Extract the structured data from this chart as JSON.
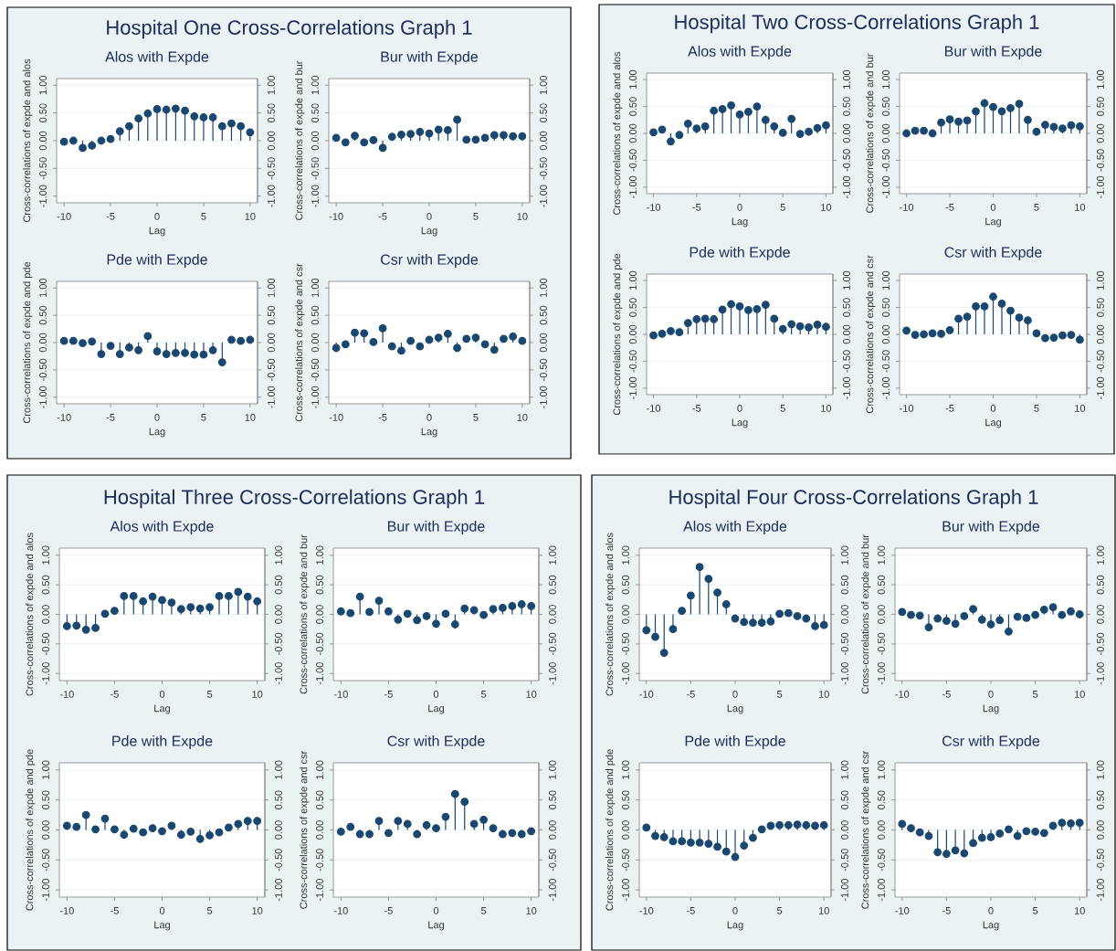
{
  "chart_data": [
    {
      "type": "lollipop",
      "title": "Alos with Expde",
      "xlabel": "Lag",
      "ylabel": "Cross-correlations of expde and alos",
      "annotations": [
        "Hospital One Cross-Correlations Graph 1"
      ],
      "color": "#1a476f",
      "marker": "circle",
      "grid": "y",
      "x": [
        -10,
        -9,
        -8,
        -7,
        -6,
        -5,
        -4,
        -3,
        -2,
        -1,
        0,
        1,
        2,
        3,
        4,
        5,
        6,
        7,
        8,
        9,
        10
      ],
      "values": [
        -0.02,
        0.0,
        -0.13,
        -0.09,
        0.0,
        0.03,
        0.17,
        0.26,
        0.4,
        0.49,
        0.57,
        0.56,
        0.58,
        0.54,
        0.44,
        0.42,
        0.42,
        0.26,
        0.31,
        0.26,
        0.15
      ],
      "xlim": [
        -10.8,
        10.8
      ],
      "xticks": [
        -10,
        -5,
        0,
        5,
        10
      ],
      "ylim": [
        -1.12,
        1.12
      ],
      "yticks": [
        {
          "value": -1,
          "label": "-1.00"
        },
        {
          "value": -0.5,
          "label": "-0.50"
        },
        {
          "value": 0,
          "label": "0.00"
        },
        {
          "value": 0.5,
          "label": "0.50"
        },
        {
          "value": 1,
          "label": "1.00"
        }
      ],
      "y2lim": [
        -1.12,
        1.12
      ],
      "y2ticks": [
        {
          "value": -1,
          "label": "-1.00"
        },
        {
          "value": -0.5,
          "label": "-0.50"
        },
        {
          "value": 0,
          "label": "0.00"
        },
        {
          "value": 0.5,
          "label": "0.50"
        },
        {
          "value": 1,
          "label": "1.00"
        }
      ]
    },
    {
      "type": "lollipop",
      "title": "Bur with Expde",
      "xlabel": "Lag",
      "ylabel": "Cross-correlations of expde and bur",
      "color": "#1a476f",
      "marker": "circle",
      "grid": "y",
      "x": [
        -10,
        -9,
        -8,
        -7,
        -6,
        -5,
        -4,
        -3,
        -2,
        -1,
        0,
        1,
        2,
        3,
        4,
        5,
        6,
        7,
        8,
        9,
        10
      ],
      "values": [
        0.05,
        -0.03,
        0.09,
        -0.03,
        0.01,
        -0.13,
        0.07,
        0.11,
        0.12,
        0.16,
        0.13,
        0.2,
        0.19,
        0.38,
        0.02,
        0.02,
        0.05,
        0.1,
        0.1,
        0.08,
        0.08
      ],
      "xlim": [
        -10.8,
        10.8
      ],
      "xticks": [
        -10,
        -5,
        0,
        5,
        10
      ],
      "ylim": [
        -1.12,
        1.12
      ],
      "yticks": [
        {
          "value": -1,
          "label": "-1.00"
        },
        {
          "value": -0.5,
          "label": "-0.50"
        },
        {
          "value": 0,
          "label": "0.00"
        },
        {
          "value": 0.5,
          "label": "0.50"
        },
        {
          "value": 1,
          "label": "1.00"
        }
      ],
      "y2lim": [
        -1.12,
        1.12
      ],
      "y2ticks": [
        {
          "value": -1,
          "label": "-1.00"
        },
        {
          "value": -0.5,
          "label": "-0.50"
        },
        {
          "value": 0,
          "label": "0.00"
        },
        {
          "value": 0.5,
          "label": "0.50"
        },
        {
          "value": 1,
          "label": "1.00"
        }
      ]
    },
    {
      "type": "lollipop",
      "title": "Pde with Expde",
      "xlabel": "Lag",
      "ylabel": "Cross-correlations of expde and pde",
      "color": "#1a476f",
      "marker": "circle",
      "grid": "y",
      "x": [
        -10,
        -9,
        -8,
        -7,
        -6,
        -5,
        -4,
        -3,
        -2,
        -1,
        0,
        1,
        2,
        3,
        4,
        5,
        6,
        7,
        8,
        9,
        10
      ],
      "values": [
        0.03,
        0.03,
        -0.01,
        0.02,
        -0.21,
        -0.06,
        -0.21,
        -0.09,
        -0.14,
        0.12,
        -0.16,
        -0.21,
        -0.19,
        -0.19,
        -0.22,
        -0.22,
        -0.14,
        -0.36,
        0.05,
        0.03,
        0.05
      ],
      "xlim": [
        -10.8,
        10.8
      ],
      "xticks": [
        -10,
        -5,
        0,
        5,
        10
      ],
      "ylim": [
        -1.12,
        1.12
      ],
      "yticks": [
        {
          "value": -1,
          "label": "-1.00"
        },
        {
          "value": -0.5,
          "label": "-0.50"
        },
        {
          "value": 0,
          "label": "0.00"
        },
        {
          "value": 0.5,
          "label": "0.50"
        },
        {
          "value": 1,
          "label": "1.00"
        }
      ],
      "y2lim": [
        -1.12,
        1.12
      ],
      "y2ticks": [
        {
          "value": -1,
          "label": "-1.00"
        },
        {
          "value": -0.5,
          "label": "-0.50"
        },
        {
          "value": 0,
          "label": "0.00"
        },
        {
          "value": 0.5,
          "label": "0.50"
        },
        {
          "value": 1,
          "label": "1.00"
        }
      ]
    },
    {
      "type": "lollipop",
      "title": "Csr with Expde",
      "xlabel": "Lag",
      "ylabel": "Cross-correlations of expde and csr",
      "color": "#1a476f",
      "marker": "circle",
      "grid": "y",
      "x": [
        -10,
        -9,
        -8,
        -7,
        -6,
        -5,
        -4,
        -3,
        -2,
        -1,
        0,
        1,
        2,
        3,
        4,
        5,
        6,
        7,
        8,
        9,
        10
      ],
      "values": [
        -0.1,
        -0.03,
        0.18,
        0.17,
        0.01,
        0.26,
        -0.07,
        -0.15,
        0.03,
        -0.07,
        0.05,
        0.09,
        0.16,
        -0.1,
        0.07,
        0.09,
        -0.03,
        -0.13,
        0.07,
        0.11,
        0.03
      ],
      "xlim": [
        -10.8,
        10.8
      ],
      "xticks": [
        -10,
        -5,
        0,
        5,
        10
      ],
      "ylim": [
        -1.12,
        1.12
      ],
      "yticks": [
        {
          "value": -1,
          "label": "-1.00"
        },
        {
          "value": -0.5,
          "label": "-0.50"
        },
        {
          "value": 0,
          "label": "0.00"
        },
        {
          "value": 0.5,
          "label": "0.50"
        },
        {
          "value": 1,
          "label": "1.00"
        }
      ],
      "y2lim": [
        -1.12,
        1.12
      ],
      "y2ticks": [
        {
          "value": -1,
          "label": "-1.00"
        },
        {
          "value": -0.5,
          "label": "-0.50"
        },
        {
          "value": 0,
          "label": "0.00"
        },
        {
          "value": 0.5,
          "label": "0.50"
        },
        {
          "value": 1,
          "label": "1.00"
        }
      ]
    },
    {
      "type": "lollipop",
      "title": "Alos with Expde",
      "xlabel": "Lag",
      "ylabel": "Cross-correlations of expde and alos",
      "annotations": [
        "Hospital Two Cross-Correlations Graph 1"
      ],
      "color": "#1a476f",
      "marker": "circle",
      "grid": "y",
      "x": [
        -10,
        -9,
        -8,
        -7,
        -6,
        -5,
        -4,
        -3,
        -2,
        -1,
        0,
        1,
        2,
        3,
        4,
        5,
        6,
        7,
        8,
        9,
        10
      ],
      "values": [
        0.02,
        0.07,
        -0.15,
        -0.03,
        0.18,
        0.09,
        0.13,
        0.42,
        0.45,
        0.52,
        0.35,
        0.4,
        0.5,
        0.25,
        0.13,
        0.01,
        0.27,
        -0.01,
        0.03,
        0.1,
        0.15
      ],
      "xlim": [
        -10.8,
        10.8
      ],
      "xticks": [
        -10,
        -5,
        0,
        5,
        10
      ],
      "ylim": [
        -1.12,
        1.12
      ],
      "yticks": [
        {
          "value": -1,
          "label": "-1.00"
        },
        {
          "value": -0.5,
          "label": "-0.50"
        },
        {
          "value": 0,
          "label": "0.00"
        },
        {
          "value": 0.5,
          "label": "0.50"
        },
        {
          "value": 1,
          "label": "1.00"
        }
      ],
      "y2lim": [
        -1.12,
        1.12
      ],
      "y2ticks": [
        {
          "value": -1,
          "label": "-1.00"
        },
        {
          "value": -0.5,
          "label": "-0.50"
        },
        {
          "value": 0,
          "label": "0.00"
        },
        {
          "value": 0.5,
          "label": "0.50"
        },
        {
          "value": 1,
          "label": "1.00"
        }
      ]
    },
    {
      "type": "lollipop",
      "title": "Bur with Expde",
      "xlabel": "Lag",
      "ylabel": "Cross-correlations of expde and bur",
      "color": "#1a476f",
      "marker": "circle",
      "grid": "y",
      "x": [
        -10,
        -9,
        -8,
        -7,
        -6,
        -5,
        -4,
        -3,
        -2,
        -1,
        0,
        1,
        2,
        3,
        4,
        5,
        6,
        7,
        8,
        9,
        10
      ],
      "values": [
        0.0,
        0.05,
        0.05,
        0.0,
        0.2,
        0.26,
        0.22,
        0.24,
        0.41,
        0.56,
        0.49,
        0.41,
        0.47,
        0.55,
        0.25,
        0.03,
        0.16,
        0.12,
        0.09,
        0.15,
        0.13
      ],
      "xlim": [
        -10.8,
        10.8
      ],
      "xticks": [
        -10,
        -5,
        0,
        5,
        10
      ],
      "ylim": [
        -1.12,
        1.12
      ],
      "yticks": [
        {
          "value": -1,
          "label": "-1.00"
        },
        {
          "value": -0.5,
          "label": "-0.50"
        },
        {
          "value": 0,
          "label": "0.00"
        },
        {
          "value": 0.5,
          "label": "0.50"
        },
        {
          "value": 1,
          "label": "1.00"
        }
      ],
      "y2lim": [
        -1.12,
        1.12
      ],
      "y2ticks": [
        {
          "value": -1,
          "label": "-1.00"
        },
        {
          "value": -0.5,
          "label": "-0.50"
        },
        {
          "value": 0,
          "label": "0.00"
        },
        {
          "value": 0.5,
          "label": "0.50"
        },
        {
          "value": 1,
          "label": "1.00"
        }
      ]
    },
    {
      "type": "lollipop",
      "title": "Pde with Expde",
      "xlabel": "Lag",
      "ylabel": "Cross-correlations of expde and pde",
      "color": "#1a476f",
      "marker": "circle",
      "grid": "y",
      "x": [
        -10,
        -9,
        -8,
        -7,
        -6,
        -5,
        -4,
        -3,
        -2,
        -1,
        0,
        1,
        2,
        3,
        4,
        5,
        6,
        7,
        8,
        9,
        10
      ],
      "values": [
        -0.02,
        0.01,
        0.06,
        0.04,
        0.21,
        0.28,
        0.29,
        0.28,
        0.46,
        0.56,
        0.52,
        0.45,
        0.47,
        0.55,
        0.29,
        0.1,
        0.19,
        0.15,
        0.13,
        0.18,
        0.14
      ],
      "xlim": [
        -10.8,
        10.8
      ],
      "xticks": [
        -10,
        -5,
        0,
        5,
        10
      ],
      "ylim": [
        -1.12,
        1.12
      ],
      "yticks": [
        {
          "value": -1,
          "label": "-1.00"
        },
        {
          "value": -0.5,
          "label": "-0.50"
        },
        {
          "value": 0,
          "label": "0.00"
        },
        {
          "value": 0.5,
          "label": "0.50"
        },
        {
          "value": 1,
          "label": "1.00"
        }
      ],
      "y2lim": [
        -1.12,
        1.12
      ],
      "y2ticks": [
        {
          "value": -1,
          "label": "-1.00"
        },
        {
          "value": -0.5,
          "label": "-0.50"
        },
        {
          "value": 0,
          "label": "0.00"
        },
        {
          "value": 0.5,
          "label": "0.50"
        },
        {
          "value": 1,
          "label": "1.00"
        }
      ]
    },
    {
      "type": "lollipop",
      "title": "Csr with Expde",
      "xlabel": "Lag",
      "ylabel": "Cross-correlations of expde and csr",
      "color": "#1a476f",
      "marker": "circle",
      "grid": "y",
      "x": [
        -10,
        -9,
        -8,
        -7,
        -6,
        -5,
        -4,
        -3,
        -2,
        -1,
        0,
        1,
        2,
        3,
        4,
        5,
        6,
        7,
        8,
        9,
        10
      ],
      "values": [
        0.07,
        -0.01,
        0.0,
        0.02,
        0.01,
        0.08,
        0.29,
        0.33,
        0.52,
        0.52,
        0.7,
        0.57,
        0.44,
        0.31,
        0.26,
        0.02,
        -0.07,
        -0.06,
        -0.02,
        -0.01,
        -0.1
      ],
      "xlim": [
        -10.8,
        10.8
      ],
      "xticks": [
        -10,
        -5,
        0,
        5,
        10
      ],
      "ylim": [
        -1.12,
        1.12
      ],
      "yticks": [
        {
          "value": -1,
          "label": "-1.00"
        },
        {
          "value": -0.5,
          "label": "-0.50"
        },
        {
          "value": 0,
          "label": "0.00"
        },
        {
          "value": 0.5,
          "label": "0.50"
        },
        {
          "value": 1,
          "label": "1.00"
        }
      ],
      "y2lim": [
        -1.12,
        1.12
      ],
      "y2ticks": [
        {
          "value": -1,
          "label": "-1.00"
        },
        {
          "value": -0.5,
          "label": "-0.50"
        },
        {
          "value": 0,
          "label": "0.00"
        },
        {
          "value": 0.5,
          "label": "0.50"
        },
        {
          "value": 1,
          "label": "1.00"
        }
      ]
    },
    {
      "type": "lollipop",
      "title": "Alos with Expde",
      "xlabel": "Lag",
      "ylabel": "Cross-correlations of expde and alos",
      "annotations": [
        "Hospital Three Cross-Correlations Graph 1"
      ],
      "color": "#1a476f",
      "marker": "circle",
      "grid": "y",
      "x": [
        -10,
        -9,
        -8,
        -7,
        -6,
        -5,
        -4,
        -3,
        -2,
        -1,
        0,
        1,
        2,
        3,
        4,
        5,
        6,
        7,
        8,
        9,
        10
      ],
      "values": [
        -0.2,
        -0.19,
        -0.26,
        -0.23,
        0.01,
        0.06,
        0.31,
        0.31,
        0.22,
        0.3,
        0.24,
        0.2,
        0.09,
        0.12,
        0.1,
        0.12,
        0.31,
        0.31,
        0.38,
        0.3,
        0.22
      ],
      "xlim": [
        -10.8,
        10.8
      ],
      "xticks": [
        -10,
        -5,
        0,
        5,
        10
      ],
      "ylim": [
        -1.12,
        1.12
      ],
      "yticks": [
        {
          "value": -1,
          "label": "-1.00"
        },
        {
          "value": -0.5,
          "label": "-0.50"
        },
        {
          "value": 0,
          "label": "0.00"
        },
        {
          "value": 0.5,
          "label": "0.50"
        },
        {
          "value": 1,
          "label": "1.00"
        }
      ],
      "y2lim": [
        -1.12,
        1.12
      ],
      "y2ticks": [
        {
          "value": -1,
          "label": "-1.00"
        },
        {
          "value": -0.5,
          "label": "-0.50"
        },
        {
          "value": 0,
          "label": "0.00"
        },
        {
          "value": 0.5,
          "label": "0.50"
        },
        {
          "value": 1,
          "label": "1.00"
        }
      ]
    },
    {
      "type": "lollipop",
      "title": "Bur with Expde",
      "xlabel": "Lag",
      "ylabel": "Cross-correlations of expde and bur",
      "color": "#1a476f",
      "marker": "circle",
      "grid": "y",
      "x": [
        -10,
        -9,
        -8,
        -7,
        -6,
        -5,
        -4,
        -3,
        -2,
        -1,
        0,
        1,
        2,
        3,
        4,
        5,
        6,
        7,
        8,
        9,
        10
      ],
      "values": [
        0.05,
        0.02,
        0.3,
        0.04,
        0.23,
        0.05,
        -0.09,
        0.01,
        -0.1,
        -0.03,
        -0.16,
        0.01,
        -0.17,
        0.1,
        0.07,
        -0.01,
        0.09,
        0.11,
        0.14,
        0.17,
        0.14
      ],
      "xlim": [
        -10.8,
        10.8
      ],
      "xticks": [
        -10,
        -5,
        0,
        5,
        10
      ],
      "ylim": [
        -1.12,
        1.12
      ],
      "yticks": [
        {
          "value": -1,
          "label": "-1.00"
        },
        {
          "value": -0.5,
          "label": "-0.50"
        },
        {
          "value": 0,
          "label": "0.00"
        },
        {
          "value": 0.5,
          "label": "0.50"
        },
        {
          "value": 1,
          "label": "1.00"
        }
      ],
      "y2lim": [
        -1.12,
        1.12
      ],
      "y2ticks": [
        {
          "value": -1,
          "label": "-1.00"
        },
        {
          "value": -0.5,
          "label": "-0.50"
        },
        {
          "value": 0,
          "label": "0.00"
        },
        {
          "value": 0.5,
          "label": "0.50"
        },
        {
          "value": 1,
          "label": "1.00"
        }
      ]
    },
    {
      "type": "lollipop",
      "title": "Pde with Expde",
      "xlabel": "Lag",
      "ylabel": "Cross-correlations of expde and pde",
      "color": "#1a476f",
      "marker": "circle",
      "grid": "y",
      "x": [
        -10,
        -9,
        -8,
        -7,
        -6,
        -5,
        -4,
        -3,
        -2,
        -1,
        0,
        1,
        2,
        3,
        4,
        5,
        6,
        7,
        8,
        9,
        10
      ],
      "values": [
        0.07,
        0.05,
        0.25,
        0.01,
        0.19,
        0.01,
        -0.08,
        0.02,
        -0.04,
        0.03,
        -0.02,
        0.07,
        -0.08,
        -0.03,
        -0.15,
        -0.09,
        -0.04,
        0.04,
        0.1,
        0.15,
        0.15
      ],
      "xlim": [
        -10.8,
        10.8
      ],
      "xticks": [
        -10,
        -5,
        0,
        5,
        10
      ],
      "ylim": [
        -1.12,
        1.12
      ],
      "yticks": [
        {
          "value": -1,
          "label": "-1.00"
        },
        {
          "value": -0.5,
          "label": "-0.50"
        },
        {
          "value": 0,
          "label": "0.00"
        },
        {
          "value": 0.5,
          "label": "0.50"
        },
        {
          "value": 1,
          "label": "1.00"
        }
      ],
      "y2lim": [
        -1.12,
        1.12
      ],
      "y2ticks": [
        {
          "value": -1,
          "label": "-1.00"
        },
        {
          "value": -0.5,
          "label": "-0.50"
        },
        {
          "value": 0,
          "label": "0.00"
        },
        {
          "value": 0.5,
          "label": "0.50"
        },
        {
          "value": 1,
          "label": "1.00"
        }
      ]
    },
    {
      "type": "lollipop",
      "title": "Csr with Expde",
      "xlabel": "Lag",
      "ylabel": "Cross-correlations of expde and csr",
      "color": "#1a476f",
      "marker": "circle",
      "grid": "y",
      "x": [
        -10,
        -9,
        -8,
        -7,
        -6,
        -5,
        -4,
        -3,
        -2,
        -1,
        0,
        1,
        2,
        3,
        4,
        5,
        6,
        7,
        8,
        9,
        10
      ],
      "values": [
        -0.03,
        0.05,
        -0.07,
        -0.07,
        0.15,
        -0.05,
        0.15,
        0.1,
        -0.07,
        0.08,
        0.03,
        0.22,
        0.6,
        0.47,
        0.1,
        0.17,
        0.03,
        -0.07,
        -0.05,
        -0.07,
        -0.02
      ],
      "xlim": [
        -10.8,
        10.8
      ],
      "xticks": [
        -10,
        -5,
        0,
        5,
        10
      ],
      "ylim": [
        -1.12,
        1.12
      ],
      "yticks": [
        {
          "value": -1,
          "label": "-1.00"
        },
        {
          "value": -0.5,
          "label": "-0.50"
        },
        {
          "value": 0,
          "label": "0.00"
        },
        {
          "value": 0.5,
          "label": "0.50"
        },
        {
          "value": 1,
          "label": "1.00"
        }
      ],
      "y2lim": [
        -1.12,
        1.12
      ],
      "y2ticks": [
        {
          "value": -1,
          "label": "-1.00"
        },
        {
          "value": -0.5,
          "label": "-0.50"
        },
        {
          "value": 0,
          "label": "0.00"
        },
        {
          "value": 0.5,
          "label": "0.50"
        },
        {
          "value": 1,
          "label": "1.00"
        }
      ]
    },
    {
      "type": "lollipop",
      "title": "Alos with Expde",
      "xlabel": "Lag",
      "ylabel": "Cross-correlations of expde and alos",
      "annotations": [
        "Hospital Four Cross-Correlations Graph 1"
      ],
      "color": "#1a476f",
      "marker": "circle",
      "grid": "y",
      "x": [
        -10,
        -9,
        -8,
        -7,
        -6,
        -5,
        -4,
        -3,
        -2,
        -1,
        0,
        1,
        2,
        3,
        4,
        5,
        6,
        7,
        8,
        9,
        10
      ],
      "values": [
        -0.27,
        -0.38,
        -0.65,
        -0.25,
        0.06,
        0.32,
        0.8,
        0.6,
        0.37,
        0.17,
        -0.07,
        -0.13,
        -0.14,
        -0.14,
        -0.12,
        0.01,
        0.02,
        -0.03,
        -0.07,
        -0.2,
        -0.18
      ],
      "xlim": [
        -10.8,
        10.8
      ],
      "xticks": [
        -10,
        -5,
        0,
        5,
        10
      ],
      "ylim": [
        -1.12,
        1.12
      ],
      "yticks": [
        {
          "value": -1,
          "label": "-1.00"
        },
        {
          "value": -0.5,
          "label": "-0.50"
        },
        {
          "value": 0,
          "label": "0.00"
        },
        {
          "value": 0.5,
          "label": "0.50"
        },
        {
          "value": 1,
          "label": "1.00"
        }
      ],
      "y2lim": [
        -1.12,
        1.12
      ],
      "y2ticks": [
        {
          "value": -1,
          "label": "-1.00"
        },
        {
          "value": -0.5,
          "label": "-0.50"
        },
        {
          "value": 0,
          "label": "0.00"
        },
        {
          "value": 0.5,
          "label": "0.50"
        },
        {
          "value": 1,
          "label": "1.00"
        }
      ]
    },
    {
      "type": "lollipop",
      "title": "Bur with Expde",
      "xlabel": "Lag",
      "ylabel": "Cross-correlations of expde and bur",
      "color": "#1a476f",
      "marker": "circle",
      "grid": "y",
      "x": [
        -10,
        -9,
        -8,
        -7,
        -6,
        -5,
        -4,
        -3,
        -2,
        -1,
        0,
        1,
        2,
        3,
        4,
        5,
        6,
        7,
        8,
        9,
        10
      ],
      "values": [
        0.04,
        -0.01,
        -0.02,
        -0.22,
        -0.07,
        -0.11,
        -0.16,
        -0.03,
        0.09,
        -0.09,
        -0.17,
        -0.1,
        -0.29,
        -0.04,
        -0.06,
        -0.01,
        0.08,
        0.12,
        -0.01,
        0.05,
        0.0
      ],
      "xlim": [
        -10.8,
        10.8
      ],
      "xticks": [
        -10,
        -5,
        0,
        5,
        10
      ],
      "ylim": [
        -1.12,
        1.12
      ],
      "yticks": [
        {
          "value": -1,
          "label": "-1.00"
        },
        {
          "value": -0.5,
          "label": "-0.50"
        },
        {
          "value": 0,
          "label": "0.00"
        },
        {
          "value": 0.5,
          "label": "0.50"
        },
        {
          "value": 1,
          "label": "1.00"
        }
      ],
      "y2lim": [
        -1.12,
        1.12
      ],
      "y2ticks": [
        {
          "value": -1,
          "label": "-1.00"
        },
        {
          "value": -0.5,
          "label": "-0.50"
        },
        {
          "value": 0,
          "label": "0.00"
        },
        {
          "value": 0.5,
          "label": "0.50"
        },
        {
          "value": 1,
          "label": "1.00"
        }
      ]
    },
    {
      "type": "lollipop",
      "title": "Pde with Expde",
      "xlabel": "Lag",
      "ylabel": "Cross-correlations of expde and pde",
      "color": "#1a476f",
      "marker": "circle",
      "grid": "y",
      "x": [
        -10,
        -9,
        -8,
        -7,
        -6,
        -5,
        -4,
        -3,
        -2,
        -1,
        0,
        1,
        2,
        3,
        4,
        5,
        6,
        7,
        8,
        9,
        10
      ],
      "values": [
        0.04,
        -0.1,
        -0.12,
        -0.19,
        -0.19,
        -0.21,
        -0.21,
        -0.23,
        -0.28,
        -0.36,
        -0.45,
        -0.26,
        -0.13,
        0.01,
        0.07,
        0.08,
        0.08,
        0.09,
        0.08,
        0.07,
        0.08
      ],
      "xlim": [
        -10.8,
        10.8
      ],
      "xticks": [
        -10,
        -5,
        0,
        5,
        10
      ],
      "ylim": [
        -1.12,
        1.12
      ],
      "yticks": [
        {
          "value": -1,
          "label": "-1.00"
        },
        {
          "value": -0.5,
          "label": "-0.50"
        },
        {
          "value": 0,
          "label": "0.00"
        },
        {
          "value": 0.5,
          "label": "0.50"
        },
        {
          "value": 1,
          "label": "1.00"
        }
      ],
      "y2lim": [
        -1.12,
        1.12
      ],
      "y2ticks": [
        {
          "value": -1,
          "label": "-1.00"
        },
        {
          "value": -0.5,
          "label": "-0.50"
        },
        {
          "value": 0,
          "label": "0.00"
        },
        {
          "value": 0.5,
          "label": "0.50"
        },
        {
          "value": 1,
          "label": "1.00"
        }
      ]
    },
    {
      "type": "lollipop",
      "title": "Csr with Expde",
      "xlabel": "Lag",
      "ylabel": "Cross-correlations of expde and csr",
      "color": "#1a476f",
      "marker": "circle",
      "grid": "y",
      "x": [
        -10,
        -9,
        -8,
        -7,
        -6,
        -5,
        -4,
        -3,
        -2,
        -1,
        0,
        1,
        2,
        3,
        4,
        5,
        6,
        7,
        8,
        9,
        10
      ],
      "values": [
        0.1,
        0.03,
        -0.04,
        -0.1,
        -0.37,
        -0.4,
        -0.34,
        -0.39,
        -0.22,
        -0.13,
        -0.12,
        -0.06,
        0.01,
        -0.1,
        -0.02,
        -0.03,
        -0.05,
        0.07,
        0.12,
        0.11,
        0.12
      ],
      "xlim": [
        -10.8,
        10.8
      ],
      "xticks": [
        -10,
        -5,
        0,
        5,
        10
      ],
      "ylim": [
        -1.12,
        1.12
      ],
      "yticks": [
        {
          "value": -1,
          "label": "-1.00"
        },
        {
          "value": -0.5,
          "label": "-0.50"
        },
        {
          "value": 0,
          "label": "0.00"
        },
        {
          "value": 0.5,
          "label": "0.50"
        },
        {
          "value": 1,
          "label": "1.00"
        }
      ],
      "y2lim": [
        -1.12,
        1.12
      ],
      "y2ticks": [
        {
          "value": -1,
          "label": "-1.00"
        },
        {
          "value": -0.5,
          "label": "-0.50"
        },
        {
          "value": 0,
          "label": "0.00"
        },
        {
          "value": 0.5,
          "label": "0.50"
        },
        {
          "value": 1,
          "label": "1.00"
        }
      ]
    }
  ]
}
